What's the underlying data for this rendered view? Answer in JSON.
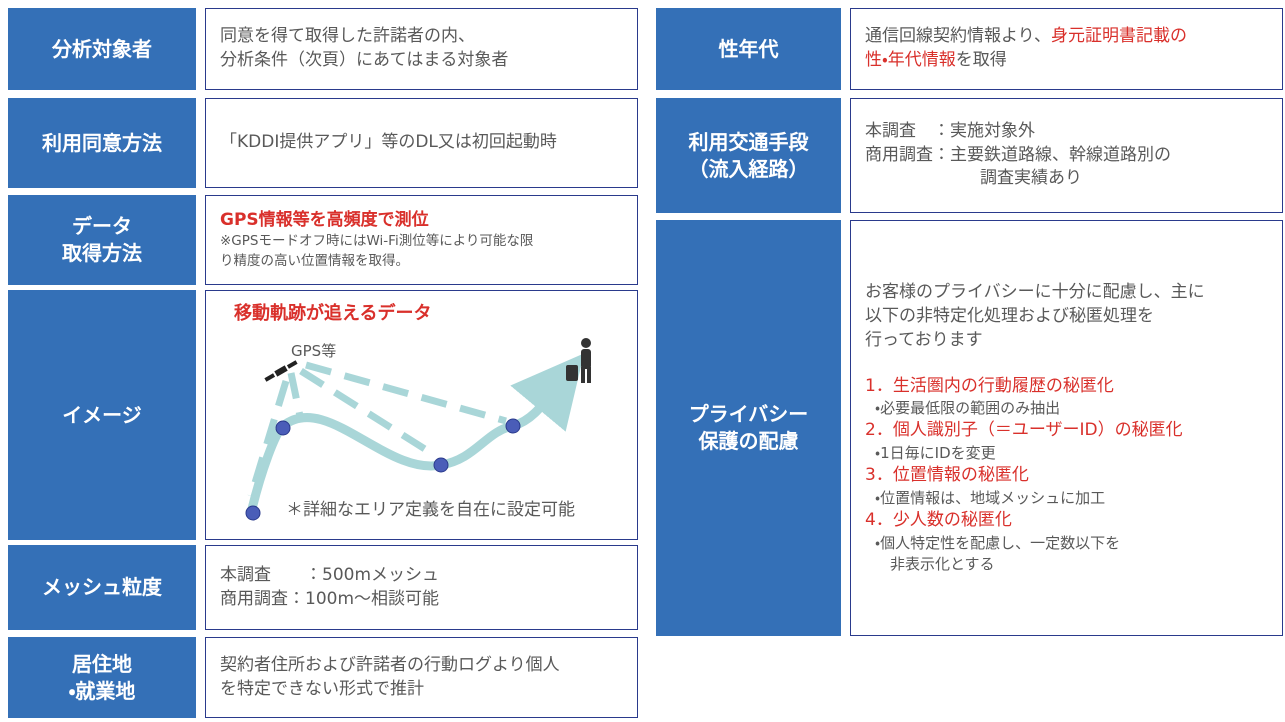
{
  "left_table": {
    "rows": [
      {
        "label": [
          "分析対象者"
        ],
        "lines": [
          "同意を得て取得した許諾者の内、",
          "分析条件（次頁）にあてはまる対象者"
        ]
      },
      {
        "label": [
          "利用同意方法"
        ],
        "lines": [
          "「KDDI提供アプリ」等のDL又は初回起動時"
        ]
      },
      {
        "label": [
          "データ",
          "取得方法"
        ],
        "heading": "GPS情報等を高頻度で測位",
        "notes": [
          "※GPSモードオフ時にはWi-Fi測位等により可能な限",
          "り精度の高い位置情報を取得。"
        ]
      },
      {
        "label": [
          "イメージ"
        ],
        "heading": "移動軌跡が追えるデータ",
        "gps_label": "GPS等",
        "caption": "＊詳細なエリア定義を自在に設定可能"
      },
      {
        "label": [
          "メッシュ粒度"
        ],
        "lines": [
          "本調査　　：500mメッシュ",
          "商用調査：100m～相談可能"
        ]
      },
      {
        "label": [
          "居住地",
          "・就業地"
        ],
        "lines": [
          "契約者住所および許諾者の行動ログより個人",
          "を特定できない形式で推計"
        ]
      }
    ]
  },
  "right_table": {
    "rows": [
      {
        "label": [
          "性年代"
        ],
        "mixed_lines": [
          {
            "plain": "通信回線契約情報より、",
            "red": "身元証明書記載の"
          },
          {
            "red": "性・年代情報",
            "plain": "を取得"
          }
        ]
      },
      {
        "label": [
          "利用交通手段",
          "（流入経路）"
        ],
        "lines": [
          "本調査　：実施対象外",
          "商用調査：主要鉄道路線、幹線道路別の",
          "調査実績あり"
        ]
      },
      {
        "label": [
          "プライバシー",
          "保護の配慮"
        ],
        "intro": [
          "お客様のプライバシーに十分に配慮し、主に",
          "以下の非特定化処理および秘匿処理を",
          "行っております"
        ],
        "items": [
          {
            "heading": "1．生活圏内の行動履歴の秘匿化",
            "details": [
              "・必要最低限の範囲のみ抽出"
            ]
          },
          {
            "heading": "2．個人識別子（＝ユーザーID）の秘匿化",
            "details": [
              "・1日毎にIDを変更"
            ]
          },
          {
            "heading": "3．位置情報の秘匿化",
            "details": [
              "・位置情報は、地域メッシュに加工"
            ]
          },
          {
            "heading": "4．少人数の秘匿化",
            "details": [
              "・個人特定性を配慮し、一定数以下を",
              "　非表示化とする"
            ]
          }
        ]
      }
    ]
  }
}
